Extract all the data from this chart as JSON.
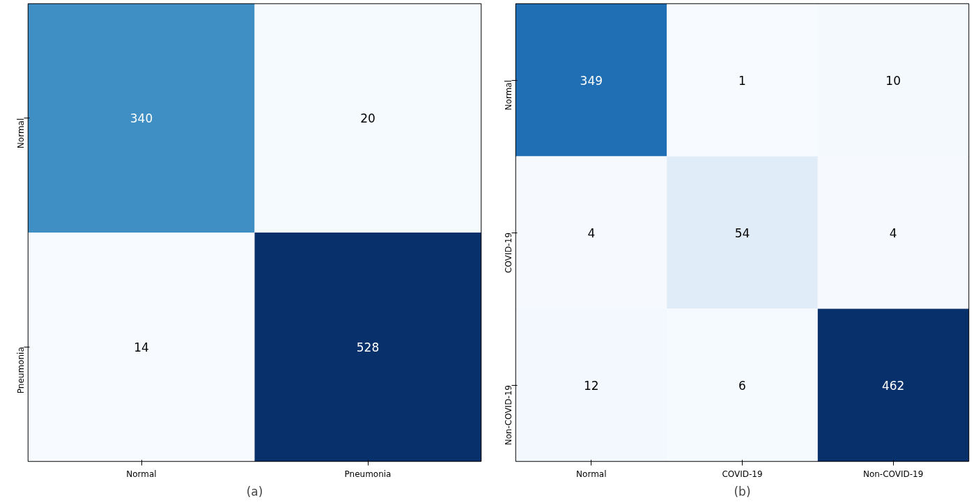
{
  "chart_data": [
    {
      "type": "heatmap",
      "xlabel": "(a)",
      "categories": [
        "Normal",
        "Pneumonia"
      ],
      "y_categories": [
        "Normal",
        "Pneumonia"
      ],
      "cells": [
        [
          340,
          20
        ],
        [
          14,
          528
        ]
      ],
      "data_labels": true
    },
    {
      "type": "heatmap",
      "xlabel": "(b)",
      "categories": [
        "Normal",
        "COVID-19",
        "Non-COVID-19"
      ],
      "y_categories": [
        "Normal",
        "COVID-19",
        "Non-COVID-19"
      ],
      "cells": [
        [
          349,
          1,
          10
        ],
        [
          4,
          54,
          4
        ],
        [
          12,
          6,
          462
        ]
      ],
      "data_labels": true
    }
  ]
}
